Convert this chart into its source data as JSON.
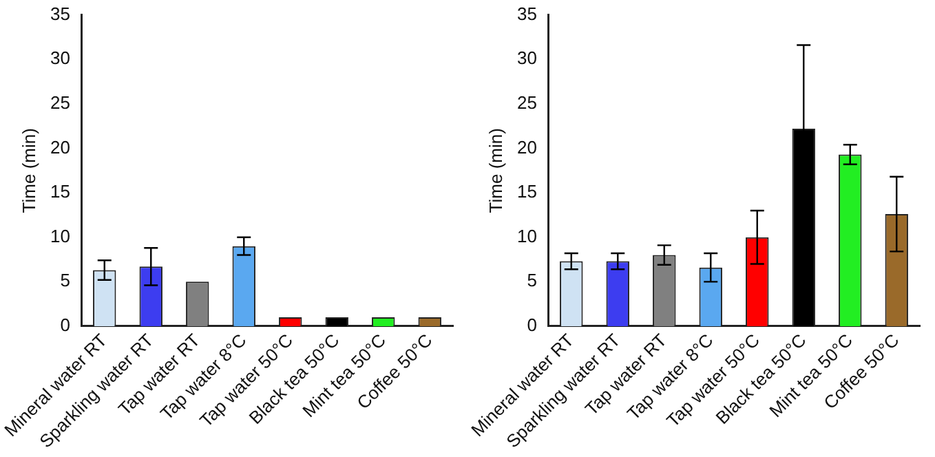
{
  "chart_data": [
    {
      "type": "bar",
      "ylabel": "Time (min)",
      "categories": [
        "Mineral water RT",
        "Sparkling water RT",
        "Tap water RT",
        "Tap water 8°C",
        "Tap water 50°C",
        "Black tea 50°C",
        "Mint tea 50°C",
        "Coffee 50°C"
      ],
      "values": [
        6.3,
        6.7,
        5.0,
        9.0,
        1.0,
        1.0,
        1.0,
        1.0
      ],
      "errors": [
        1.1,
        2.1,
        null,
        1.0,
        null,
        null,
        null,
        null
      ],
      "colors": [
        "#cfe2f3",
        "#3d3df0",
        "#808080",
        "#5aa8f0",
        "#ff0000",
        "#000000",
        "#22ee22",
        "#9a6a2a"
      ],
      "ylim": [
        0,
        35
      ],
      "yticks": [
        0,
        5,
        10,
        15,
        20,
        25,
        30,
        35
      ],
      "grid": false,
      "legend": false
    },
    {
      "type": "bar",
      "ylabel": "Time (min)",
      "categories": [
        "Mineral water RT",
        "Sparkling water RT",
        "Tap water RT",
        "Tap water 8°C",
        "Tap water 50°C",
        "Black tea 50°C",
        "Mint tea 50°C",
        "Coffee 50°C"
      ],
      "values": [
        7.3,
        7.3,
        8.0,
        6.6,
        10.0,
        22.2,
        19.3,
        12.6
      ],
      "errors": [
        0.9,
        0.9,
        1.1,
        1.6,
        3.0,
        9.4,
        1.1,
        4.2
      ],
      "colors": [
        "#cfe2f3",
        "#3d3df0",
        "#808080",
        "#5aa8f0",
        "#ff0000",
        "#000000",
        "#22ee22",
        "#9a6a2a"
      ],
      "ylim": [
        0,
        35
      ],
      "yticks": [
        0,
        5,
        10,
        15,
        20,
        25,
        30,
        35
      ],
      "grid": false,
      "legend": false
    }
  ]
}
